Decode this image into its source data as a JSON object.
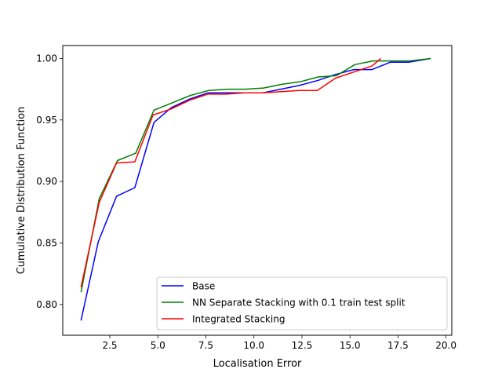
{
  "chart_data": {
    "type": "line",
    "title": "",
    "xlabel": "Localisation Error",
    "ylabel": "Cumulative Distribution Function",
    "xlim": [
      0.05,
      20.3
    ],
    "ylim": [
      0.775,
      1.0105
    ],
    "xticks": [
      "2.5",
      "5.0",
      "7.5",
      "10.0",
      "12.5",
      "15.0",
      "17.5",
      "20.0"
    ],
    "xtick_values": [
      2.5,
      5.0,
      7.5,
      10.0,
      12.5,
      15.0,
      17.5,
      20.0
    ],
    "yticks": [
      "0.80",
      "0.85",
      "0.90",
      "0.95",
      "1.00"
    ],
    "ytick_values": [
      0.8,
      0.85,
      0.9,
      0.95,
      1.0
    ],
    "grid": false,
    "legend_position": "lower right",
    "series": [
      {
        "name": "Base",
        "color": "#0000ff",
        "x": [
          1.0,
          1.9,
          2.85,
          3.8,
          4.8,
          5.7,
          6.65,
          7.6,
          8.5,
          9.5,
          10.45,
          11.4,
          12.35,
          13.3,
          14.25,
          15.2,
          16.15,
          17.1,
          18.05,
          19.2
        ],
        "y": [
          0.787,
          0.851,
          0.888,
          0.895,
          0.948,
          0.96,
          0.967,
          0.972,
          0.972,
          0.972,
          0.972,
          0.975,
          0.978,
          0.982,
          0.987,
          0.991,
          0.991,
          0.997,
          0.997,
          1.0
        ]
      },
      {
        "name": "NN Separate Stacking with 0.1 train test split",
        "color": "#008000",
        "x": [
          1.0,
          1.95,
          2.9,
          3.85,
          4.8,
          5.75,
          6.7,
          7.65,
          8.6,
          9.55,
          10.5,
          11.45,
          12.4,
          13.35,
          14.3,
          15.25,
          16.2,
          17.15,
          18.1,
          19.2
        ],
        "y": [
          0.81,
          0.886,
          0.917,
          0.923,
          0.958,
          0.964,
          0.97,
          0.974,
          0.975,
          0.975,
          0.976,
          0.979,
          0.981,
          0.985,
          0.986,
          0.995,
          0.998,
          0.998,
          0.998,
          1.0
        ]
      },
      {
        "name": "Integrated Stacking",
        "color": "#ff0000",
        "x": [
          1.0,
          1.95,
          2.85,
          3.8,
          4.75,
          5.7,
          6.65,
          7.6,
          8.55,
          9.5,
          10.45,
          11.4,
          12.35,
          13.3,
          14.25,
          15.2,
          16.15,
          16.6
        ],
        "y": [
          0.814,
          0.883,
          0.915,
          0.916,
          0.954,
          0.959,
          0.966,
          0.971,
          0.971,
          0.972,
          0.972,
          0.973,
          0.974,
          0.974,
          0.984,
          0.989,
          0.994,
          1.0
        ]
      }
    ]
  }
}
